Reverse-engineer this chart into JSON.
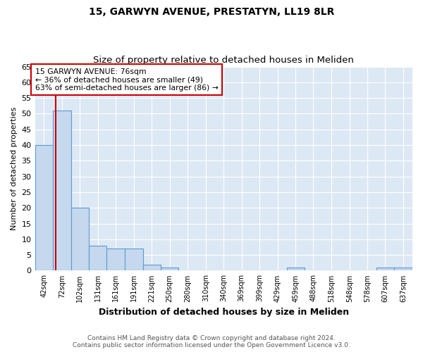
{
  "title": "15, GARWYN AVENUE, PRESTATYN, LL19 8LR",
  "subtitle": "Size of property relative to detached houses in Meliden",
  "xlabel": "Distribution of detached houses by size in Meliden",
  "ylabel": "Number of detached properties",
  "footnote": "Contains HM Land Registry data © Crown copyright and database right 2024.\nContains public sector information licensed under the Open Government Licence v3.0.",
  "bins": [
    42,
    72,
    102,
    131,
    161,
    191,
    221,
    250,
    280,
    310,
    340,
    369,
    399,
    429,
    459,
    488,
    518,
    548,
    578,
    607,
    637
  ],
  "bar_heights": [
    40,
    51,
    20,
    8,
    7,
    7,
    2,
    1,
    0,
    0,
    0,
    0,
    0,
    0,
    1,
    0,
    0,
    0,
    0,
    1,
    1
  ],
  "bar_color": "#c5d8ed",
  "bar_edgecolor": "#5b9bd5",
  "property_size": 76,
  "property_line_color": "#cc0000",
  "annotation_text": "15 GARWYN AVENUE: 76sqm\n← 36% of detached houses are smaller (49)\n63% of semi-detached houses are larger (86) →",
  "annotation_box_facecolor": "#ffffff",
  "annotation_box_edgecolor": "#cc0000",
  "ylim": [
    0,
    65
  ],
  "yticks": [
    0,
    5,
    10,
    15,
    20,
    25,
    30,
    35,
    40,
    45,
    50,
    55,
    60,
    65
  ],
  "plot_bg_color": "#dde8f5",
  "title_fontsize": 10,
  "subtitle_fontsize": 9.5,
  "footnote_fontsize": 6.5
}
